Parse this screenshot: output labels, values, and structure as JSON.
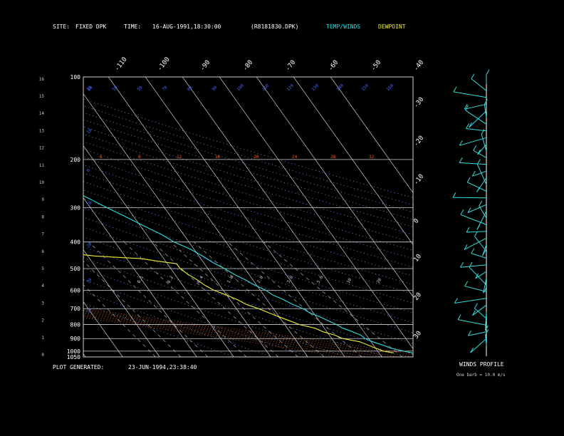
{
  "header": {
    "site_label": "SITE:",
    "site_value": "FIXED DPK",
    "time_label": "TIME:",
    "time_value": "16-AUG-1991,18:30:00",
    "file": "(R8181830.DPK)",
    "legend_temp": "TEMP/WINDS",
    "legend_dew": "DEWPOINT"
  },
  "footer": {
    "generated_label": "PLOT GENERATED:",
    "generated_value": "23-JUN-1994,23:38:40"
  },
  "winds_panel": {
    "title": "WINDS PROFILE",
    "note": "One barb = 10.0 m/s"
  },
  "colors": {
    "temp": "#33dddd",
    "dewpoint": "#eeee33",
    "grid": "#cfcfcf",
    "mixing": "#4466ff",
    "dry_adiabat": "#8899ff",
    "moist_adiabat": "#dd6633",
    "background": "#000000"
  },
  "chart_data": {
    "type": "line",
    "pressure_ticks": [
      100,
      200,
      300,
      400,
      500,
      600,
      700,
      800,
      900,
      1000,
      1050
    ],
    "height_ticks": [
      "0",
      "1",
      "2",
      "3",
      "4",
      "5",
      "6",
      "7",
      "8",
      "9",
      "10",
      "11",
      "12",
      "13",
      "14",
      "15",
      "16"
    ],
    "top_temp_ticks": [
      "-110",
      "-100",
      "-90",
      "-80",
      "-70",
      "-60",
      "-50",
      "-40"
    ],
    "right_temp_ticks": [
      "-30",
      "-20",
      "-10",
      "0",
      "10",
      "20",
      "30"
    ],
    "mixing_labels_top": [
      "60",
      "50",
      "50",
      "70",
      "80",
      "90",
      "100",
      "110",
      "120",
      "130",
      "140",
      "150",
      "160"
    ],
    "mixing_labels_left": [
      "15",
      "10",
      "0",
      "10",
      "20",
      "30",
      "35"
    ],
    "theta_e_labels": [
      "6",
      "8",
      "12",
      "16",
      "20",
      "24",
      "28",
      "32"
    ],
    "mixing_ratio_labels": [
      "0.1",
      "0.2",
      "0.4",
      "1.0",
      "2.0",
      "3.0",
      "5.0",
      "10",
      "20"
    ],
    "temperature": {
      "name": "TEMP/WINDS",
      "points": [
        [
          1015,
          29
        ],
        [
          1000,
          27
        ],
        [
          975,
          24
        ],
        [
          950,
          22.5
        ],
        [
          925,
          20.5
        ],
        [
          900,
          19
        ],
        [
          875,
          18.5
        ],
        [
          850,
          17
        ],
        [
          825,
          15
        ],
        [
          800,
          14
        ],
        [
          775,
          12.5
        ],
        [
          750,
          11
        ],
        [
          725,
          9
        ],
        [
          700,
          8
        ],
        [
          675,
          6
        ],
        [
          650,
          4.5
        ],
        [
          625,
          2.5
        ],
        [
          600,
          1.5
        ],
        [
          575,
          -0.5
        ],
        [
          550,
          -2
        ],
        [
          525,
          -4
        ],
        [
          500,
          -5.5
        ],
        [
          475,
          -7.5
        ],
        [
          450,
          -9
        ],
        [
          425,
          -11
        ],
        [
          400,
          -14
        ],
        [
          375,
          -16
        ],
        [
          350,
          -19
        ],
        [
          325,
          -22
        ],
        [
          300,
          -25.5
        ],
        [
          275,
          -29
        ],
        [
          250,
          -33.5
        ],
        [
          225,
          -38
        ],
        [
          200,
          -43
        ],
        [
          190,
          -46
        ],
        [
          180,
          -49
        ],
        [
          170,
          -51
        ],
        [
          160,
          -54
        ],
        [
          150,
          -58
        ],
        [
          140,
          -60
        ],
        [
          130,
          -61
        ],
        [
          120,
          -64
        ],
        [
          110,
          -67
        ],
        [
          105,
          -69
        ],
        [
          100,
          -73
        ]
      ]
    },
    "dewpoint": {
      "name": "DEWPOINT",
      "points": [
        [
          1015,
          24
        ],
        [
          1000,
          21.5
        ],
        [
          975,
          20
        ],
        [
          950,
          18.5
        ],
        [
          925,
          17
        ],
        [
          900,
          13
        ],
        [
          875,
          11.5
        ],
        [
          850,
          9
        ],
        [
          825,
          7.5
        ],
        [
          800,
          4
        ],
        [
          775,
          2
        ],
        [
          750,
          0
        ],
        [
          725,
          -2
        ],
        [
          700,
          -4
        ],
        [
          675,
          -6.5
        ],
        [
          650,
          -8
        ],
        [
          625,
          -10
        ],
        [
          600,
          -12.5
        ],
        [
          575,
          -14
        ],
        [
          550,
          -15
        ],
        [
          525,
          -16.5
        ],
        [
          500,
          -17.5
        ],
        [
          480,
          -17.5
        ],
        [
          470,
          -22
        ],
        [
          460,
          -26
        ],
        [
          450,
          -38
        ],
        [
          440,
          -44
        ],
        [
          430,
          -50
        ],
        [
          420,
          -53
        ],
        [
          410,
          -56
        ],
        [
          400,
          -58
        ],
        [
          390,
          -59
        ],
        [
          380,
          -62
        ],
        [
          370,
          -62
        ],
        [
          360,
          -62
        ],
        [
          350,
          -58
        ],
        [
          340,
          -61
        ],
        [
          330,
          -57
        ],
        [
          320,
          -58
        ],
        [
          310,
          -56
        ],
        [
          300,
          -56
        ],
        [
          290,
          -59
        ],
        [
          280,
          -61
        ],
        [
          270,
          -60
        ],
        [
          260,
          -62
        ],
        [
          250,
          -64
        ],
        [
          240,
          -66
        ],
        [
          230,
          -66
        ],
        [
          220,
          -68
        ],
        [
          210,
          -68
        ],
        [
          200,
          -70
        ]
      ]
    }
  }
}
